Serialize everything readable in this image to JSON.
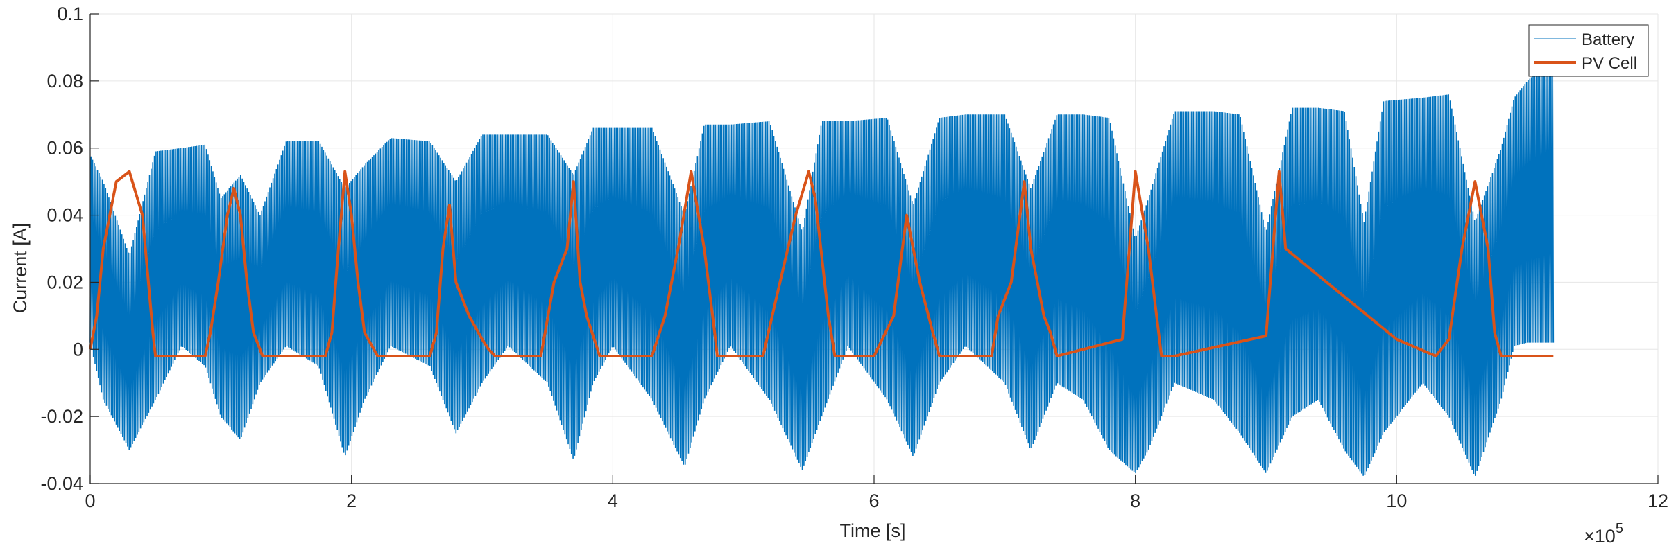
{
  "chart_data": {
    "type": "line",
    "title": "",
    "xlabel": "Time [s]",
    "ylabel": "Current [A]",
    "x_exponent_label": "×10",
    "x_exponent_power": "5",
    "xlim": [
      0,
      12
    ],
    "ylim": [
      -0.04,
      0.1
    ],
    "x_ticks": [
      0,
      2,
      4,
      6,
      8,
      10,
      12
    ],
    "x_tick_labels": [
      "0",
      "2",
      "4",
      "6",
      "8",
      "10",
      "12"
    ],
    "y_ticks": [
      -0.04,
      -0.02,
      0,
      0.02,
      0.04,
      0.06,
      0.08,
      0.1
    ],
    "y_tick_labels": [
      "-0.04",
      "-0.02",
      "0",
      "0.02",
      "0.04",
      "0.06",
      "0.08",
      "0.1"
    ],
    "grid": true,
    "legend_position": "top-right",
    "series": [
      {
        "name": "Battery",
        "color": "#0072BD",
        "style": "thin oscillating band",
        "x": [
          0,
          0.1,
          0.3,
          0.5,
          0.7,
          0.88,
          1.0,
          1.15,
          1.3,
          1.5,
          1.75,
          1.95,
          2.1,
          2.3,
          2.6,
          2.8,
          3.0,
          3.2,
          3.5,
          3.7,
          3.85,
          4.0,
          4.3,
          4.55,
          4.7,
          4.9,
          5.2,
          5.45,
          5.6,
          5.8,
          6.1,
          6.3,
          6.5,
          6.7,
          7.0,
          7.2,
          7.4,
          7.6,
          7.8,
          8.0,
          8.1,
          8.3,
          8.6,
          8.8,
          9.0,
          9.2,
          9.4,
          9.6,
          9.75,
          9.9,
          10.2,
          10.4,
          10.6,
          10.8,
          10.9,
          11.0,
          11.2
        ],
        "upper": [
          0.058,
          0.05,
          0.028,
          0.059,
          0.06,
          0.061,
          0.045,
          0.052,
          0.04,
          0.062,
          0.062,
          0.048,
          0.055,
          0.063,
          0.062,
          0.05,
          0.064,
          0.064,
          0.064,
          0.052,
          0.066,
          0.066,
          0.066,
          0.04,
          0.067,
          0.067,
          0.068,
          0.035,
          0.068,
          0.068,
          0.069,
          0.043,
          0.069,
          0.07,
          0.07,
          0.048,
          0.07,
          0.07,
          0.069,
          0.033,
          0.045,
          0.071,
          0.071,
          0.07,
          0.035,
          0.072,
          0.072,
          0.071,
          0.038,
          0.074,
          0.075,
          0.076,
          0.038,
          0.06,
          0.075,
          0.08,
          0.087
        ],
        "lower": [
          0.002,
          -0.015,
          -0.03,
          -0.015,
          0.001,
          -0.005,
          -0.02,
          -0.027,
          -0.01,
          0.001,
          -0.005,
          -0.032,
          -0.015,
          0.001,
          -0.005,
          -0.025,
          -0.01,
          0.001,
          -0.01,
          -0.033,
          -0.01,
          0.001,
          -0.015,
          -0.035,
          -0.015,
          0.001,
          -0.015,
          -0.036,
          -0.02,
          0.001,
          -0.015,
          -0.032,
          -0.01,
          0.001,
          -0.01,
          -0.03,
          -0.01,
          -0.015,
          -0.03,
          -0.037,
          -0.03,
          -0.01,
          -0.015,
          -0.025,
          -0.037,
          -0.02,
          -0.015,
          -0.03,
          -0.038,
          -0.025,
          -0.01,
          -0.02,
          -0.038,
          -0.015,
          0.001,
          0.002,
          0.002
        ]
      },
      {
        "name": "PV Cell",
        "color": "#D95319",
        "x": [
          0,
          0.05,
          0.1,
          0.2,
          0.3,
          0.4,
          0.48,
          0.5,
          0.88,
          0.92,
          0.98,
          1.05,
          1.1,
          1.15,
          1.2,
          1.25,
          1.3,
          1.32,
          1.8,
          1.85,
          1.9,
          1.95,
          2.0,
          2.05,
          2.1,
          2.2,
          2.3,
          2.6,
          2.65,
          2.7,
          2.75,
          2.8,
          2.9,
          3.0,
          3.05,
          3.1,
          3.45,
          3.55,
          3.65,
          3.7,
          3.75,
          3.8,
          3.9,
          4.0,
          4.05,
          4.3,
          4.4,
          4.5,
          4.6,
          4.7,
          4.78,
          4.8,
          5.15,
          5.25,
          5.4,
          5.5,
          5.55,
          5.65,
          5.7,
          6.0,
          6.15,
          6.25,
          6.35,
          6.45,
          6.5,
          6.9,
          6.95,
          7.05,
          7.15,
          7.2,
          7.3,
          7.35,
          7.4,
          7.9,
          8.0,
          8.1,
          8.2,
          8.3,
          9.0,
          9.1,
          9.15,
          10.0,
          10.3,
          10.4,
          10.5,
          10.6,
          10.7,
          10.75,
          10.8,
          11.2
        ],
        "y": [
          0,
          0.01,
          0.03,
          0.05,
          0.053,
          0.04,
          0.005,
          -0.002,
          -0.002,
          0.005,
          0.02,
          0.04,
          0.048,
          0.04,
          0.02,
          0.005,
          0,
          -0.002,
          -0.002,
          0.005,
          0.03,
          0.053,
          0.04,
          0.02,
          0.005,
          -0.002,
          -0.002,
          -0.002,
          0.005,
          0.03,
          0.043,
          0.02,
          0.01,
          0.003,
          0,
          -0.002,
          -0.002,
          0.02,
          0.03,
          0.05,
          0.02,
          0.01,
          -0.002,
          -0.002,
          -0.002,
          -0.002,
          0.01,
          0.03,
          0.053,
          0.03,
          0.005,
          -0.002,
          -0.002,
          0.015,
          0.04,
          0.053,
          0.045,
          0.01,
          -0.002,
          -0.002,
          0.01,
          0.04,
          0.02,
          0.005,
          -0.002,
          -0.002,
          0.01,
          0.02,
          0.05,
          0.03,
          0.01,
          0.005,
          -0.002,
          0.003,
          0.053,
          0.03,
          -0.002,
          -0.002,
          0.004,
          0.053,
          0.03,
          0.003,
          -0.002,
          0.003,
          0.03,
          0.05,
          0.03,
          0.005,
          -0.002,
          -0.002
        ]
      }
    ]
  }
}
